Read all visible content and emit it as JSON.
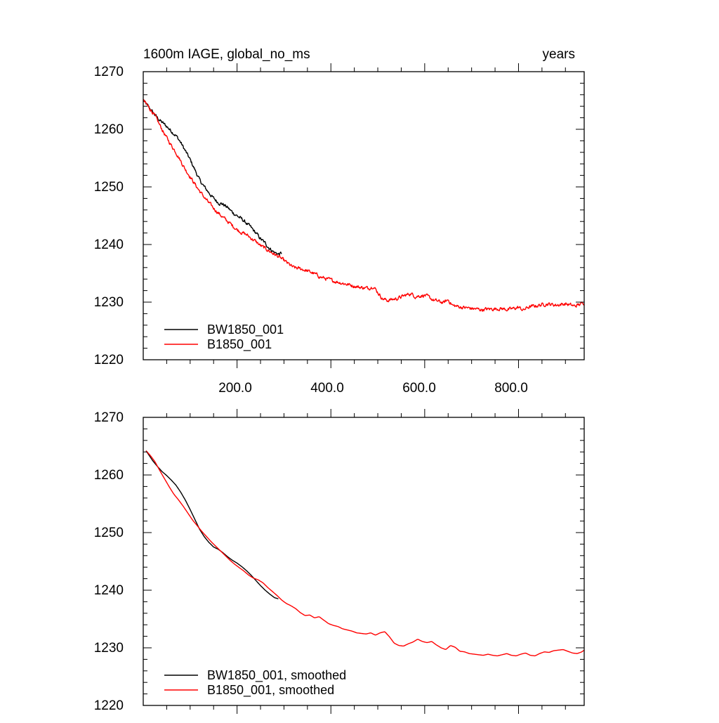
{
  "chart_data": [
    {
      "type": "line",
      "title_left": "1600m IAGE, global_no_ms",
      "title_right": "years",
      "xlabel": "",
      "ylabel": "",
      "xlim": [
        0,
        940
      ],
      "ylim": [
        1220,
        1270
      ],
      "y_ticks": [
        "1270",
        "1260",
        "1250",
        "1240",
        "1230",
        "1220"
      ],
      "x_ticks": [
        "200.0",
        "400.0",
        "600.0",
        "800.0"
      ],
      "grid": false,
      "legend": "bottom-left",
      "series": [
        {
          "name": "BW1850_001",
          "color": "#000000",
          "noise": 0.35,
          "x": [
            0,
            10,
            20,
            30,
            40,
            50,
            60,
            70,
            80,
            90,
            100,
            110,
            120,
            130,
            140,
            150,
            160,
            170,
            180,
            190,
            200,
            210,
            220,
            230,
            240,
            250,
            260,
            270,
            280,
            290,
            295
          ],
          "y": [
            1265,
            1264,
            1263,
            1262,
            1261.2,
            1260.5,
            1259.7,
            1258.9,
            1257.7,
            1256.2,
            1254.7,
            1253,
            1251.2,
            1250,
            1249,
            1248,
            1247.3,
            1247,
            1246.4,
            1245.6,
            1245,
            1244.4,
            1243.7,
            1242.9,
            1242,
            1241,
            1240.2,
            1239.3,
            1238.6,
            1238.3,
            1238.5
          ]
        },
        {
          "name": "B1850_001",
          "color": "#ff0000",
          "noise": 0.35,
          "x": [
            0,
            10,
            20,
            30,
            40,
            50,
            60,
            70,
            80,
            90,
            100,
            110,
            120,
            130,
            140,
            150,
            160,
            170,
            180,
            190,
            200,
            210,
            220,
            230,
            240,
            250,
            260,
            270,
            280,
            290,
            300,
            320,
            340,
            360,
            380,
            400,
            420,
            440,
            460,
            480,
            490,
            500,
            510,
            520,
            540,
            560,
            570,
            580,
            600,
            620,
            640,
            650,
            660,
            680,
            700,
            720,
            740,
            760,
            780,
            800,
            810,
            820,
            840,
            860,
            880,
            900,
            920,
            940
          ],
          "y": [
            1265,
            1264,
            1263,
            1261.5,
            1260,
            1258.5,
            1257.2,
            1256,
            1254.5,
            1253,
            1251.8,
            1250.5,
            1249.3,
            1248.2,
            1247.2,
            1246.3,
            1245.5,
            1244.7,
            1244,
            1243.3,
            1242.6,
            1242.1,
            1241.7,
            1241.1,
            1240.5,
            1239.8,
            1239.3,
            1238.8,
            1238.3,
            1237.8,
            1237.2,
            1236,
            1235.7,
            1235.1,
            1234.3,
            1233.8,
            1233.4,
            1233,
            1232.6,
            1232.4,
            1232.8,
            1231.7,
            1230.6,
            1230.3,
            1230.6,
            1231.2,
            1231.5,
            1231,
            1231.2,
            1230.3,
            1229.9,
            1230.4,
            1229.4,
            1229.1,
            1228.9,
            1228.7,
            1228.8,
            1228.9,
            1228.7,
            1229.1,
            1228.6,
            1229.1,
            1229.4,
            1229.7,
            1229.5,
            1229.7,
            1229.3,
            1229.9
          ]
        }
      ]
    },
    {
      "type": "line",
      "title_left": "",
      "title_right": "",
      "xlabel": "",
      "ylabel": "",
      "xlim": [
        0,
        940
      ],
      "ylim": [
        1220,
        1270
      ],
      "y_ticks": [
        "1270",
        "1260",
        "1250",
        "1240",
        "1230",
        "1220"
      ],
      "x_ticks": [],
      "grid": false,
      "legend": "bottom-left",
      "series": [
        {
          "name": "BW1850_001, smoothed",
          "color": "#000000",
          "noise": 0,
          "x": [
            6,
            20,
            30,
            40,
            50,
            60,
            70,
            80,
            90,
            100,
            110,
            120,
            130,
            140,
            150,
            160,
            170,
            180,
            190,
            200,
            210,
            220,
            230,
            240,
            250,
            260,
            270,
            280,
            288
          ],
          "y": [
            1264.2,
            1262.5,
            1261.5,
            1260.6,
            1259.9,
            1259.1,
            1258.2,
            1257,
            1255.6,
            1254,
            1252.3,
            1250.6,
            1249.3,
            1248.3,
            1247.5,
            1247.1,
            1246.5,
            1245.8,
            1245.2,
            1244.7,
            1244.1,
            1243.4,
            1242.6,
            1241.7,
            1240.8,
            1240,
            1239.3,
            1238.7,
            1238.5
          ]
        },
        {
          "name": "B1850_001, smoothed",
          "color": "#ff0000",
          "noise": 0,
          "x": [
            6,
            15,
            25,
            35,
            45,
            55,
            65,
            75,
            85,
            95,
            105,
            115,
            125,
            135,
            145,
            155,
            165,
            175,
            185,
            195,
            205,
            215,
            225,
            235,
            245,
            255,
            265,
            275,
            285,
            295,
            305,
            315,
            325,
            335,
            345,
            355,
            365,
            375,
            385,
            395,
            405,
            415,
            425,
            435,
            445,
            455,
            465,
            475,
            485,
            495,
            505,
            515,
            525,
            535,
            545,
            555,
            565,
            575,
            585,
            595,
            605,
            615,
            625,
            635,
            645,
            655,
            665,
            675,
            685,
            695,
            705,
            715,
            725,
            735,
            745,
            755,
            765,
            775,
            785,
            795,
            805,
            815,
            825,
            835,
            845,
            855,
            865,
            875,
            885,
            895,
            905,
            915,
            925,
            935,
            940
          ],
          "y": [
            1264.2,
            1263.4,
            1262.3,
            1260.8,
            1259.4,
            1258,
            1256.7,
            1255.7,
            1254.6,
            1253.4,
            1252.2,
            1251.2,
            1250.2,
            1249.3,
            1248.4,
            1247.6,
            1246.8,
            1246,
            1245.2,
            1244.5,
            1243.9,
            1243.3,
            1242.6,
            1242.1,
            1241.8,
            1241.3,
            1240.5,
            1239.8,
            1239.1,
            1238.3,
            1237.7,
            1237.3,
            1236.8,
            1236.1,
            1235.6,
            1235.7,
            1235.2,
            1235.4,
            1234.8,
            1234.2,
            1233.9,
            1233.7,
            1233.3,
            1233.1,
            1232.9,
            1232.6,
            1232.5,
            1232.4,
            1232.6,
            1232.2,
            1232.6,
            1232.8,
            1231.9,
            1230.8,
            1230.4,
            1230.3,
            1230.7,
            1231,
            1231.5,
            1231.1,
            1230.9,
            1231.1,
            1230.5,
            1230,
            1229.7,
            1230.4,
            1230.1,
            1229.4,
            1229.3,
            1229,
            1228.9,
            1228.8,
            1228.7,
            1228.9,
            1228.7,
            1228.6,
            1228.8,
            1229,
            1228.7,
            1228.6,
            1228.9,
            1229.1,
            1228.7,
            1228.6,
            1229,
            1229.3,
            1229.2,
            1229.5,
            1229.6,
            1229.7,
            1229.4,
            1229.1,
            1229,
            1229.3,
            1229.6
          ]
        }
      ]
    }
  ]
}
